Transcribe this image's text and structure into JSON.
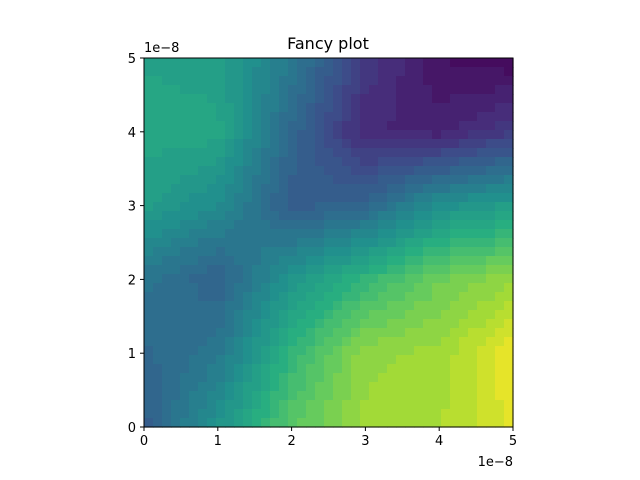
{
  "chart_data": {
    "type": "heatmap",
    "subtype": "filled-contour",
    "title": "Fancy plot",
    "xlabel": "",
    "ylabel": "",
    "x_offset_label": "1e−8",
    "y_offset_label": "1e−8",
    "xlim": [
      0,
      5
    ],
    "ylim": [
      0,
      5
    ],
    "x_ticks": [
      "0",
      "1",
      "2",
      "3",
      "4",
      "5"
    ],
    "y_ticks": [
      "0",
      "1",
      "2",
      "3",
      "4",
      "5"
    ],
    "colormap": "viridis",
    "grid": false,
    "x": [
      0,
      1,
      2,
      3,
      4,
      5
    ],
    "y": [
      0,
      1,
      2,
      3,
      4,
      5
    ],
    "z": [
      [
        0.3,
        0.52,
        0.74,
        0.86,
        0.88,
        0.96
      ],
      [
        0.34,
        0.4,
        0.66,
        0.84,
        0.86,
        0.98
      ],
      [
        0.4,
        0.32,
        0.52,
        0.66,
        0.78,
        0.84
      ],
      [
        0.56,
        0.48,
        0.3,
        0.34,
        0.5,
        0.56
      ],
      [
        0.6,
        0.6,
        0.34,
        0.12,
        0.1,
        0.18
      ],
      [
        0.58,
        0.56,
        0.42,
        0.18,
        0.05,
        0.02
      ]
    ],
    "z_note": "relative level 0 (dark purple) to 1 (yellow), estimated from colours"
  },
  "colors": {
    "axes_edge": "#000000",
    "background": "#ffffff"
  }
}
